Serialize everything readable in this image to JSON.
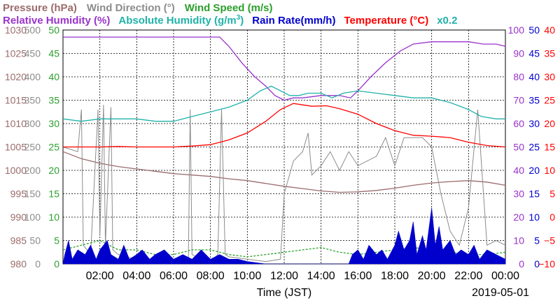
{
  "chart_data": {
    "type": "line",
    "x_axis": {
      "label": "Time (JST)",
      "date": "2019-05-01",
      "ticks": [
        "02:00",
        "04:00",
        "06:00",
        "08:00",
        "10:00",
        "12:00",
        "14:00",
        "16:00",
        "18:00",
        "20:00",
        "22:00",
        "00:00"
      ],
      "xlim_hours": [
        0,
        24
      ]
    },
    "legend_row1": [
      {
        "text": "Pressure (hPa)",
        "color": "#9b6b6b"
      },
      {
        "text": "Wind Direction (°)",
        "color": "#8c8c8c"
      },
      {
        "text": "Wind Speed (m/s)",
        "color": "#2ca02c"
      }
    ],
    "legend_row2": [
      {
        "text": "Relative Humidity (%)",
        "color": "#9932cc"
      },
      {
        "text": "Absolute Humidity (g/m",
        "sup": "3",
        "close": ")",
        "color": "#20b2aa"
      },
      {
        "text": "Rain Rate(mm/h)",
        "color": "#0000cd"
      },
      {
        "text": "Temperature (°C)",
        "color": "#ff0000"
      },
      {
        "text": "x0.2",
        "color": "#20b2aa"
      }
    ],
    "left_axes": [
      {
        "name": "Pressure",
        "color": "#9b6b6b",
        "ticks": [
          "1030",
          "1025",
          "1020",
          "1015",
          "1010",
          "1005",
          "1000",
          "995",
          "990",
          "985",
          "980"
        ],
        "ylim": [
          980,
          1030
        ]
      },
      {
        "name": "Wind Direction",
        "color": "#8c8c8c",
        "ticks": [
          "500",
          "450",
          "400",
          "350",
          "300",
          "250",
          "200",
          "150",
          "100",
          "50",
          "0"
        ],
        "ylim": [
          0,
          500
        ]
      },
      {
        "name": "Wind Speed",
        "color": "#2ca02c",
        "ticks": [
          "50",
          "45",
          "40",
          "35",
          "30",
          "25",
          "20",
          "15",
          "10",
          "5",
          "0"
        ],
        "ylim": [
          0,
          50
        ]
      }
    ],
    "right_axes": [
      {
        "name": "Relative Humidity",
        "color": "#9932cc",
        "ticks": [
          "100",
          "90",
          "80",
          "70",
          "60",
          "50",
          "40",
          "30",
          "20",
          "10",
          "0"
        ],
        "ylim": [
          0,
          100
        ]
      },
      {
        "name": "Rain Rate",
        "color": "#0000cd",
        "ticks": [
          "50",
          "45",
          "40",
          "35",
          "30",
          "25",
          "20",
          "15",
          "10",
          "5",
          "0"
        ],
        "ylim": [
          0,
          50
        ]
      },
      {
        "name": "Temperature",
        "color": "#ff0000",
        "ticks": [
          "40",
          "35",
          "30",
          "25",
          "20",
          "15",
          "10",
          "5",
          "0",
          "−5",
          "−10"
        ],
        "ylim": [
          -10,
          40
        ]
      }
    ],
    "series": [
      {
        "name": "Pressure",
        "color": "#9b6b6b",
        "units": "hPa",
        "points": [
          [
            0,
            1004
          ],
          [
            1,
            1002.5
          ],
          [
            2,
            1001.5
          ],
          [
            3,
            1000.8
          ],
          [
            4,
            1000.3
          ],
          [
            5,
            999.8
          ],
          [
            6,
            999.3
          ],
          [
            7,
            999
          ],
          [
            8,
            998.7
          ],
          [
            9,
            998.2
          ],
          [
            10,
            997.8
          ],
          [
            11,
            997.2
          ],
          [
            12,
            996.6
          ],
          [
            13,
            996.1
          ],
          [
            14,
            995.6
          ],
          [
            15,
            995.3
          ],
          [
            16,
            995.4
          ],
          [
            17,
            995.7
          ],
          [
            18,
            996.2
          ],
          [
            19,
            996.8
          ],
          [
            20,
            997.3
          ],
          [
            21,
            997.6
          ],
          [
            22,
            997.8
          ],
          [
            23,
            997.5
          ],
          [
            24,
            996.8
          ]
        ]
      },
      {
        "name": "Wind Direction",
        "color": "#8c8c8c",
        "units": "°",
        "points": [
          [
            0,
            250
          ],
          [
            0.8,
            240
          ],
          [
            1,
            330
          ],
          [
            1.1,
            40
          ],
          [
            1.5,
            20
          ],
          [
            1.9,
            330
          ],
          [
            2,
            60
          ],
          [
            2.2,
            340
          ],
          [
            2.3,
            40
          ],
          [
            2.6,
            335
          ],
          [
            2.7,
            30
          ],
          [
            3,
            20
          ],
          [
            4,
            10
          ],
          [
            5,
            5
          ],
          [
            6,
            5
          ],
          [
            6.8,
            10
          ],
          [
            6.9,
            330
          ],
          [
            7,
            20
          ],
          [
            7.5,
            10
          ],
          [
            8,
            5
          ],
          [
            8.4,
            20
          ],
          [
            8.6,
            330
          ],
          [
            8.8,
            20
          ],
          [
            9,
            15
          ],
          [
            10,
            10
          ],
          [
            11,
            5
          ],
          [
            11.8,
            10
          ],
          [
            12,
            150
          ],
          [
            12.5,
            220
          ],
          [
            13,
            240
          ],
          [
            13.3,
            280
          ],
          [
            13.5,
            190
          ],
          [
            14,
            210
          ],
          [
            14.5,
            240
          ],
          [
            15,
            200
          ],
          [
            15.5,
            240
          ],
          [
            16,
            210
          ],
          [
            17,
            230
          ],
          [
            17.5,
            270
          ],
          [
            18,
            210
          ],
          [
            18.5,
            270
          ],
          [
            19,
            270
          ],
          [
            19.5,
            270
          ],
          [
            20,
            250
          ],
          [
            20.5,
            150
          ],
          [
            21,
            70
          ],
          [
            21.5,
            40
          ],
          [
            22,
            120
          ],
          [
            22.5,
            330
          ],
          [
            23,
            40
          ],
          [
            23.5,
            50
          ],
          [
            24,
            40
          ]
        ]
      },
      {
        "name": "Wind Speed",
        "color": "#2ca02c",
        "units": "m/s",
        "points": [
          [
            0,
            3
          ],
          [
            1,
            4
          ],
          [
            2,
            5
          ],
          [
            3,
            3
          ],
          [
            4,
            3
          ],
          [
            5,
            2
          ],
          [
            6,
            2
          ],
          [
            7,
            3
          ],
          [
            8,
            3
          ],
          [
            9,
            2
          ],
          [
            10,
            1.5
          ],
          [
            11,
            2
          ],
          [
            12,
            2.5
          ],
          [
            13,
            3
          ],
          [
            14,
            3.5
          ],
          [
            15,
            2.5
          ],
          [
            16,
            2
          ],
          [
            17,
            2.5
          ],
          [
            18,
            3
          ],
          [
            19,
            3.5
          ],
          [
            20,
            3
          ],
          [
            21,
            2.5
          ],
          [
            22,
            2
          ],
          [
            23,
            2
          ],
          [
            24,
            2.5
          ]
        ]
      },
      {
        "name": "Relative Humidity",
        "color": "#9932cc",
        "units": "%",
        "points": [
          [
            0,
            97
          ],
          [
            2,
            97
          ],
          [
            4,
            97
          ],
          [
            6,
            97
          ],
          [
            8,
            97
          ],
          [
            8.5,
            97
          ],
          [
            9,
            93
          ],
          [
            9.7,
            86
          ],
          [
            10.4,
            80
          ],
          [
            11,
            76
          ],
          [
            11.5,
            72
          ],
          [
            12,
            70
          ],
          [
            12.5,
            71
          ],
          [
            13,
            71
          ],
          [
            14,
            72
          ],
          [
            15,
            72
          ],
          [
            15.6,
            71
          ],
          [
            16,
            74
          ],
          [
            16.7,
            80
          ],
          [
            17.5,
            86
          ],
          [
            18.3,
            91
          ],
          [
            19,
            94
          ],
          [
            20,
            95
          ],
          [
            21,
            95
          ],
          [
            22,
            95
          ],
          [
            22.8,
            94
          ],
          [
            23.5,
            94
          ],
          [
            24,
            93
          ]
        ]
      },
      {
        "name": "Absolute Humidity (x0.2)",
        "color": "#20b2aa",
        "units": "g/m3 x0.2",
        "points": [
          [
            0,
            62
          ],
          [
            1,
            61
          ],
          [
            2,
            62
          ],
          [
            3,
            62
          ],
          [
            4,
            62
          ],
          [
            5,
            61
          ],
          [
            6,
            61
          ],
          [
            7,
            63
          ],
          [
            8,
            65
          ],
          [
            9,
            67
          ],
          [
            10,
            70
          ],
          [
            10.7,
            74
          ],
          [
            11.3,
            76
          ],
          [
            11.8,
            74
          ],
          [
            12.3,
            72
          ],
          [
            12.8,
            72
          ],
          [
            13.3,
            73
          ],
          [
            14,
            73
          ],
          [
            14.6,
            71
          ],
          [
            15.2,
            73
          ],
          [
            16,
            74
          ],
          [
            17,
            73
          ],
          [
            18,
            72
          ],
          [
            19,
            71
          ],
          [
            20,
            71
          ],
          [
            21,
            69
          ],
          [
            22,
            66
          ],
          [
            22.7,
            63
          ],
          [
            23.5,
            62
          ],
          [
            24,
            62
          ]
        ]
      },
      {
        "name": "Temperature",
        "color": "#ff0000",
        "units": "°C",
        "points": [
          [
            0,
            15
          ],
          [
            1,
            15
          ],
          [
            2,
            15
          ],
          [
            3,
            15.1
          ],
          [
            4,
            15
          ],
          [
            5,
            15
          ],
          [
            6,
            15
          ],
          [
            7,
            15.2
          ],
          [
            8,
            15.5
          ],
          [
            9,
            16.5
          ],
          [
            10,
            18
          ],
          [
            11,
            20.5
          ],
          [
            11.8,
            23
          ],
          [
            12.5,
            24.3
          ],
          [
            13,
            24
          ],
          [
            13.5,
            23.7
          ],
          [
            14.3,
            23.8
          ],
          [
            15,
            23.2
          ],
          [
            16,
            22
          ],
          [
            17,
            20
          ],
          [
            18,
            18.5
          ],
          [
            19,
            17.5
          ],
          [
            20,
            17.3
          ],
          [
            21,
            17
          ],
          [
            22,
            16
          ],
          [
            23,
            15.3
          ],
          [
            24,
            15
          ]
        ]
      },
      {
        "name": "Rain Rate",
        "color": "#0000cd",
        "units": "mm/h",
        "points": [
          [
            0,
            0
          ],
          [
            0.1,
            2
          ],
          [
            0.3,
            5
          ],
          [
            0.5,
            1
          ],
          [
            0.8,
            3
          ],
          [
            1.2,
            2
          ],
          [
            1.5,
            4
          ],
          [
            1.8,
            1
          ],
          [
            2,
            3
          ],
          [
            2.4,
            5
          ],
          [
            2.6,
            2
          ],
          [
            3,
            1
          ],
          [
            3.3,
            4
          ],
          [
            3.6,
            1
          ],
          [
            4,
            2
          ],
          [
            4.3,
            3
          ],
          [
            4.7,
            1
          ],
          [
            5,
            2
          ],
          [
            5.5,
            3
          ],
          [
            6,
            1
          ],
          [
            6.5,
            2
          ],
          [
            7,
            1
          ],
          [
            7.5,
            3
          ],
          [
            8,
            1
          ],
          [
            8.5,
            2
          ],
          [
            9,
            1
          ],
          [
            9.5,
            1
          ],
          [
            10,
            0.5
          ],
          [
            11,
            0
          ],
          [
            12,
            0
          ],
          [
            14,
            0
          ],
          [
            15.5,
            0
          ],
          [
            15.7,
            2
          ],
          [
            16,
            3
          ],
          [
            16.3,
            1
          ],
          [
            16.6,
            4
          ],
          [
            17,
            2
          ],
          [
            17.3,
            3
          ],
          [
            17.6,
            1
          ],
          [
            18,
            4
          ],
          [
            18.2,
            7
          ],
          [
            18.5,
            3
          ],
          [
            18.8,
            5
          ],
          [
            19,
            9
          ],
          [
            19.2,
            2
          ],
          [
            19.5,
            6
          ],
          [
            19.7,
            3
          ],
          [
            20,
            12
          ],
          [
            20.2,
            4
          ],
          [
            20.4,
            8
          ],
          [
            20.6,
            3
          ],
          [
            21,
            5
          ],
          [
            21.3,
            2
          ],
          [
            21.6,
            3
          ],
          [
            22,
            2
          ],
          [
            22.3,
            4
          ],
          [
            22.6,
            1
          ],
          [
            23,
            3
          ],
          [
            23.5,
            2
          ],
          [
            24,
            1
          ]
        ]
      }
    ]
  }
}
